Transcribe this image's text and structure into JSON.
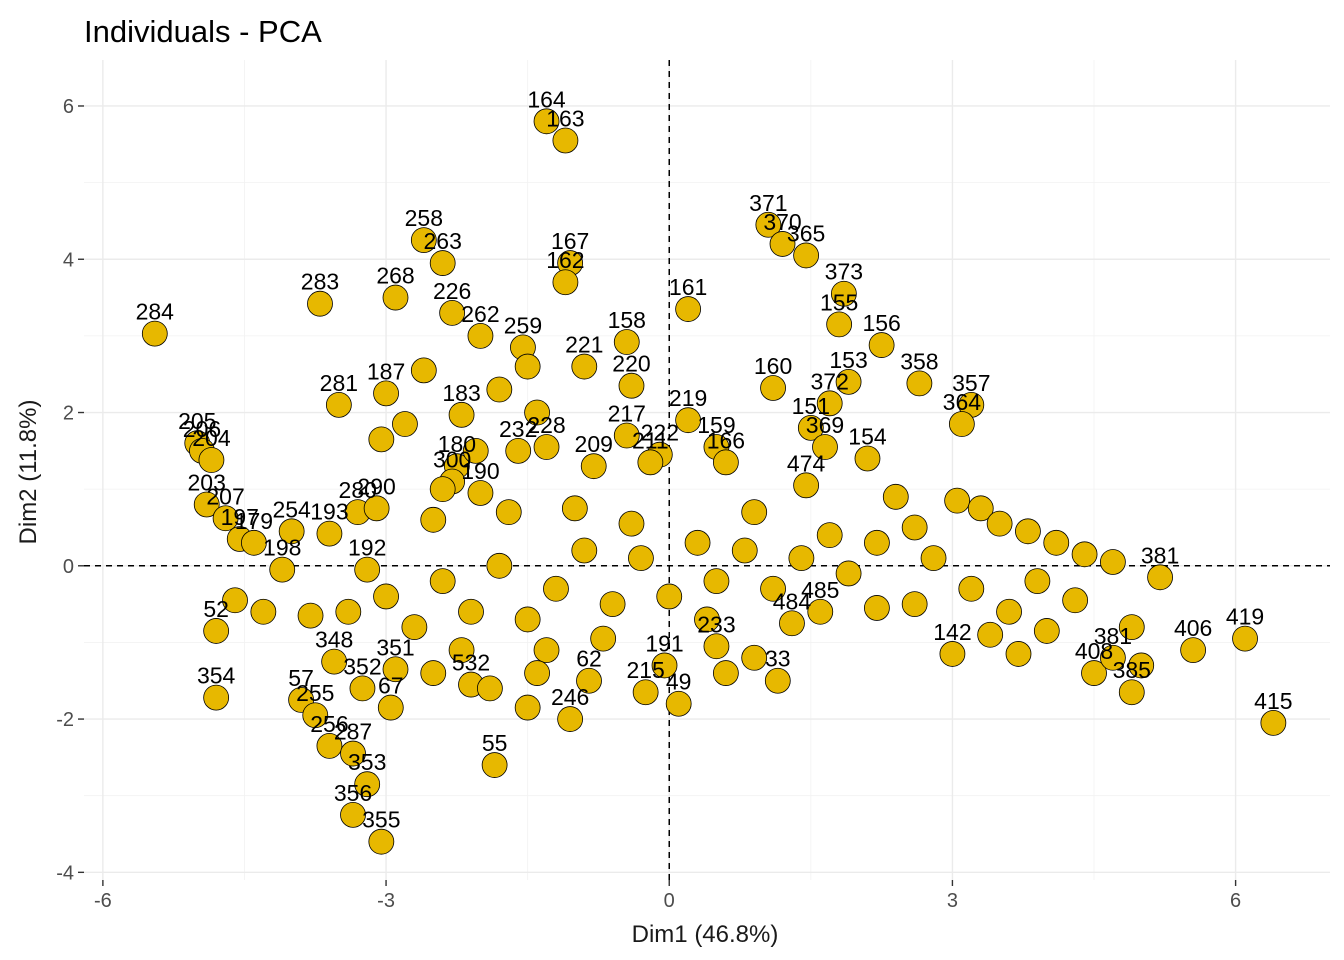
{
  "chart_data": {
    "type": "scatter",
    "title": "Individuals - PCA",
    "xlabel": "Dim1 (46.8%)",
    "ylabel": "Dim2 (11.8%)",
    "xlim": [
      -6.2,
      7.0
    ],
    "ylim": [
      -4.1,
      6.6
    ],
    "xticks": [
      -6,
      -3,
      0,
      3,
      6
    ],
    "yticks": [
      -4,
      -2,
      0,
      2,
      4,
      6
    ],
    "xtick_labels": [
      "-6",
      "-3",
      "0",
      "3",
      "6"
    ],
    "ytick_labels": [
      "-4",
      "-2",
      "0",
      "2",
      "4",
      "6"
    ],
    "reference_lines": {
      "x": 0,
      "y": 0
    },
    "grid": true,
    "point_color": "#E7B800",
    "point_edge_color": "#000000",
    "points": [
      {
        "label": "164",
        "x": -1.3,
        "y": 5.8
      },
      {
        "label": "163",
        "x": -1.1,
        "y": 5.55
      },
      {
        "label": "371",
        "x": 1.05,
        "y": 4.45
      },
      {
        "label": "370",
        "x": 1.2,
        "y": 4.2
      },
      {
        "label": "365",
        "x": 1.45,
        "y": 4.05
      },
      {
        "label": "258",
        "x": -2.6,
        "y": 4.25
      },
      {
        "label": "263",
        "x": -2.4,
        "y": 3.95
      },
      {
        "label": "167",
        "x": -1.05,
        "y": 3.95
      },
      {
        "label": "162",
        "x": -1.1,
        "y": 3.7
      },
      {
        "label": "373",
        "x": 1.85,
        "y": 3.55
      },
      {
        "label": "268",
        "x": -2.9,
        "y": 3.5
      },
      {
        "label": "283",
        "x": -3.7,
        "y": 3.42
      },
      {
        "label": "161",
        "x": 0.2,
        "y": 3.35
      },
      {
        "label": "226",
        "x": -2.3,
        "y": 3.3
      },
      {
        "label": "155",
        "x": 1.8,
        "y": 3.15
      },
      {
        "label": "284",
        "x": -5.45,
        "y": 3.03
      },
      {
        "label": "158",
        "x": -0.45,
        "y": 2.92
      },
      {
        "label": "156",
        "x": 2.25,
        "y": 2.88
      },
      {
        "label": "262",
        "x": -2.0,
        "y": 3.0
      },
      {
        "label": "259",
        "x": -1.55,
        "y": 2.85
      },
      {
        "label": "221",
        "x": -0.9,
        "y": 2.6
      },
      {
        "label": "220",
        "x": -0.4,
        "y": 2.35
      },
      {
        "label": "153",
        "x": 1.9,
        "y": 2.4
      },
      {
        "label": "358",
        "x": 2.65,
        "y": 2.38
      },
      {
        "label": "160",
        "x": 1.1,
        "y": 2.32
      },
      {
        "label": "372",
        "x": 1.7,
        "y": 2.12
      },
      {
        "label": "357",
        "x": 3.2,
        "y": 2.1
      },
      {
        "label": "281",
        "x": -3.5,
        "y": 2.1
      },
      {
        "label": "187",
        "x": -3.0,
        "y": 2.25
      },
      {
        "label": "183",
        "x": -2.2,
        "y": 1.97
      },
      {
        "label": "219",
        "x": 0.2,
        "y": 1.9
      },
      {
        "label": "364",
        "x": 3.1,
        "y": 1.85
      },
      {
        "label": "151",
        "x": 1.5,
        "y": 1.8
      },
      {
        "label": "217",
        "x": -0.45,
        "y": 1.7
      },
      {
        "label": "205",
        "x": -5.0,
        "y": 1.6
      },
      {
        "label": "206",
        "x": -4.95,
        "y": 1.5
      },
      {
        "label": "204",
        "x": -4.85,
        "y": 1.38
      },
      {
        "label": "369",
        "x": 1.65,
        "y": 1.55
      },
      {
        "label": "154",
        "x": 2.1,
        "y": 1.4
      },
      {
        "label": "232",
        "x": -1.6,
        "y": 1.5
      },
      {
        "label": "228",
        "x": -1.3,
        "y": 1.55
      },
      {
        "label": "222",
        "x": -0.1,
        "y": 1.45
      },
      {
        "label": "211",
        "x": -0.2,
        "y": 1.35
      },
      {
        "label": "159",
        "x": 0.5,
        "y": 1.55
      },
      {
        "label": "209",
        "x": -0.8,
        "y": 1.3
      },
      {
        "label": "166",
        "x": 0.6,
        "y": 1.35
      },
      {
        "label": "474",
        "x": 1.45,
        "y": 1.05
      },
      {
        "label": "180",
        "x": -2.25,
        "y": 1.3
      },
      {
        "label": "300",
        "x": -2.3,
        "y": 1.1
      },
      {
        "label": "190",
        "x": -2.0,
        "y": 0.95
      },
      {
        "label": "203",
        "x": -4.9,
        "y": 0.8
      },
      {
        "label": "207",
        "x": -4.7,
        "y": 0.62
      },
      {
        "label": "197",
        "x": -4.55,
        "y": 0.35
      },
      {
        "label": "179",
        "x": -4.4,
        "y": 0.3
      },
      {
        "label": "254",
        "x": -4.0,
        "y": 0.45
      },
      {
        "label": "193",
        "x": -3.6,
        "y": 0.42
      },
      {
        "label": "280",
        "x": -3.3,
        "y": 0.7
      },
      {
        "label": "290",
        "x": -3.1,
        "y": 0.75
      },
      {
        "label": "198",
        "x": -4.1,
        "y": -0.05
      },
      {
        "label": "192",
        "x": -3.2,
        "y": -0.05
      },
      {
        "label": "381",
        "x": 5.2,
        "y": -0.15
      },
      {
        "label": "419",
        "x": 6.1,
        "y": -0.95
      },
      {
        "label": "406",
        "x": 5.55,
        "y": -1.1
      },
      {
        "label": "415",
        "x": 6.4,
        "y": -2.05
      },
      {
        "label": "142",
        "x": 3.0,
        "y": -1.15
      },
      {
        "label": "484",
        "x": 1.3,
        "y": -0.75
      },
      {
        "label": "485",
        "x": 1.6,
        "y": -0.6
      },
      {
        "label": "233",
        "x": 0.5,
        "y": -1.05
      },
      {
        "label": "33",
        "x": 1.15,
        "y": -1.5
      },
      {
        "label": "49",
        "x": 0.1,
        "y": -1.8
      },
      {
        "label": "215",
        "x": -0.25,
        "y": -1.65
      },
      {
        "label": "191",
        "x": -0.05,
        "y": -1.3
      },
      {
        "label": "62",
        "x": -0.85,
        "y": -1.5
      },
      {
        "label": "246",
        "x": -1.05,
        "y": -2.0
      },
      {
        "label": "55",
        "x": -1.85,
        "y": -2.6
      },
      {
        "label": "354",
        "x": -4.8,
        "y": -1.72
      },
      {
        "label": "57",
        "x": -3.9,
        "y": -1.75
      },
      {
        "label": "255",
        "x": -3.75,
        "y": -1.95
      },
      {
        "label": "256",
        "x": -3.6,
        "y": -2.35
      },
      {
        "label": "287",
        "x": -3.35,
        "y": -2.45
      },
      {
        "label": "353",
        "x": -3.2,
        "y": -2.85
      },
      {
        "label": "356",
        "x": -3.35,
        "y": -3.25
      },
      {
        "label": "355",
        "x": -3.05,
        "y": -3.6
      },
      {
        "label": "67",
        "x": -2.95,
        "y": -1.85
      },
      {
        "label": "352",
        "x": -3.25,
        "y": -1.6
      },
      {
        "label": "351",
        "x": -2.9,
        "y": -1.35
      },
      {
        "label": "348",
        "x": -3.55,
        "y": -1.25
      },
      {
        "label": "532",
        "x": -2.1,
        "y": -1.55
      },
      {
        "label": "52",
        "x": -4.8,
        "y": -0.85
      },
      {
        "label": "385",
        "x": 4.9,
        "y": -1.65
      },
      {
        "label": "408",
        "x": 4.5,
        "y": -1.4
      },
      {
        "label": "381b",
        "x": 4.7,
        "y": -1.2
      },
      {
        "label": "",
        "x": 3.05,
        "y": 0.85
      },
      {
        "label": "",
        "x": 3.3,
        "y": 0.75
      },
      {
        "label": "",
        "x": 3.5,
        "y": 0.55
      },
      {
        "label": "",
        "x": 3.8,
        "y": 0.45
      },
      {
        "label": "",
        "x": 4.1,
        "y": 0.3
      },
      {
        "label": "",
        "x": 4.4,
        "y": 0.15
      },
      {
        "label": "",
        "x": 4.7,
        "y": 0.05
      },
      {
        "label": "",
        "x": 3.9,
        "y": -0.2
      },
      {
        "label": "",
        "x": 4.3,
        "y": -0.45
      },
      {
        "label": "",
        "x": 3.6,
        "y": -0.6
      },
      {
        "label": "",
        "x": 3.2,
        "y": -0.3
      },
      {
        "label": "",
        "x": 2.8,
        "y": 0.1
      },
      {
        "label": "",
        "x": 2.6,
        "y": 0.5
      },
      {
        "label": "",
        "x": 2.4,
        "y": 0.9
      },
      {
        "label": "",
        "x": 2.2,
        "y": 0.3
      },
      {
        "label": "",
        "x": 1.9,
        "y": -0.1
      },
      {
        "label": "",
        "x": 1.7,
        "y": 0.4
      },
      {
        "label": "",
        "x": 1.4,
        "y": 0.1
      },
      {
        "label": "",
        "x": 1.1,
        "y": -0.3
      },
      {
        "label": "",
        "x": 0.8,
        "y": 0.2
      },
      {
        "label": "",
        "x": 0.5,
        "y": -0.2
      },
      {
        "label": "",
        "x": 0.3,
        "y": 0.3
      },
      {
        "label": "",
        "x": 0.0,
        "y": -0.4
      },
      {
        "label": "",
        "x": -0.3,
        "y": 0.1
      },
      {
        "label": "",
        "x": -0.6,
        "y": -0.5
      },
      {
        "label": "",
        "x": -0.9,
        "y": 0.2
      },
      {
        "label": "",
        "x": -1.2,
        "y": -0.3
      },
      {
        "label": "",
        "x": -1.5,
        "y": -0.7
      },
      {
        "label": "",
        "x": -1.8,
        "y": 0.0
      },
      {
        "label": "",
        "x": -2.1,
        "y": -0.6
      },
      {
        "label": "",
        "x": -2.4,
        "y": -0.2
      },
      {
        "label": "",
        "x": -2.7,
        "y": -0.8
      },
      {
        "label": "",
        "x": -3.0,
        "y": -0.4
      },
      {
        "label": "",
        "x": -3.4,
        "y": -0.6
      },
      {
        "label": "",
        "x": -3.8,
        "y": -0.65
      },
      {
        "label": "",
        "x": -4.3,
        "y": -0.6
      },
      {
        "label": "",
        "x": -4.6,
        "y": -0.45
      },
      {
        "label": "",
        "x": -2.5,
        "y": 0.6
      },
      {
        "label": "",
        "x": -1.7,
        "y": 0.7
      },
      {
        "label": "",
        "x": -1.0,
        "y": 0.75
      },
      {
        "label": "",
        "x": -0.4,
        "y": 0.55
      },
      {
        "label": "",
        "x": 0.9,
        "y": 0.7
      },
      {
        "label": "",
        "x": -1.3,
        "y": -1.1
      },
      {
        "label": "",
        "x": -0.7,
        "y": -0.95
      },
      {
        "label": "",
        "x": -2.2,
        "y": -1.1
      },
      {
        "label": "",
        "x": -1.9,
        "y": -1.6
      },
      {
        "label": "",
        "x": -1.5,
        "y": -1.85
      },
      {
        "label": "",
        "x": -1.4,
        "y": -1.4
      },
      {
        "label": "",
        "x": -2.5,
        "y": -1.4
      },
      {
        "label": "",
        "x": 0.4,
        "y": -0.7
      },
      {
        "label": "",
        "x": 0.9,
        "y": -1.2
      },
      {
        "label": "",
        "x": 0.6,
        "y": -1.4
      },
      {
        "label": "",
        "x": 2.2,
        "y": -0.55
      },
      {
        "label": "",
        "x": 2.6,
        "y": -0.5
      },
      {
        "label": "",
        "x": 4.0,
        "y": -0.85
      },
      {
        "label": "",
        "x": 4.9,
        "y": -0.8
      },
      {
        "label": "",
        "x": 5.0,
        "y": -1.3
      },
      {
        "label": "",
        "x": 3.4,
        "y": -0.9
      },
      {
        "label": "",
        "x": 3.7,
        "y": -1.15
      },
      {
        "label": "",
        "x": -2.8,
        "y": 1.85
      },
      {
        "label": "",
        "x": -2.6,
        "y": 2.55
      },
      {
        "label": "",
        "x": -1.8,
        "y": 2.3
      },
      {
        "label": "",
        "x": -1.4,
        "y": 2.0
      },
      {
        "label": "",
        "x": -1.5,
        "y": 2.6
      },
      {
        "label": "",
        "x": -2.05,
        "y": 1.5
      },
      {
        "label": "",
        "x": -3.05,
        "y": 1.65
      },
      {
        "label": "",
        "x": -2.4,
        "y": 1.0
      }
    ]
  }
}
